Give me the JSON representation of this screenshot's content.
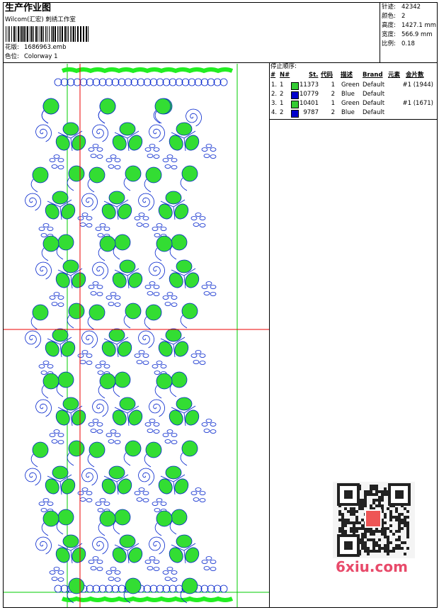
{
  "header": {
    "title": "生产作业图",
    "studio": "Wilcom(汇宏) 刺绣工作室",
    "design_label": "花版:",
    "design_value": "1686963.emb",
    "colorway_label": "色位:",
    "colorway_value": "Colorway 1"
  },
  "stats": [
    {
      "label": "针迹:",
      "value": "42342"
    },
    {
      "label": "颜色:",
      "value": "2"
    },
    {
      "label": "高度:",
      "value": "1427.1 mm"
    },
    {
      "label": "宽度:",
      "value": "566.9 mm"
    },
    {
      "label": "比例:",
      "value": "0.18"
    }
  ],
  "stop_sequence": {
    "title": "停止顺序:",
    "columns": [
      "#",
      "N#",
      "St.",
      "代码",
      "描述",
      "Brand",
      "元素",
      "金片数"
    ],
    "rows": [
      {
        "index": "1.",
        "needle": "1",
        "color": "#33cc33",
        "stitches": "11373",
        "code": "1",
        "description": "Green",
        "brand": "Default",
        "sequins": "#1 (1944)"
      },
      {
        "index": "2.",
        "needle": "2",
        "color": "#0000cc",
        "stitches": "10779",
        "code": "2",
        "description": "Blue",
        "brand": "Default"
      },
      {
        "index": "3.",
        "needle": "1",
        "color": "#33cc33",
        "stitches": "10401",
        "code": "1",
        "description": "Green",
        "brand": "Default",
        "sequins": "#1 (1671)"
      },
      {
        "index": "4.",
        "needle": "2",
        "color": "#0000cc",
        "stitches": "9787",
        "code": "2",
        "description": "Blue",
        "brand": "Default"
      }
    ]
  },
  "watermark": "6xiu.com"
}
